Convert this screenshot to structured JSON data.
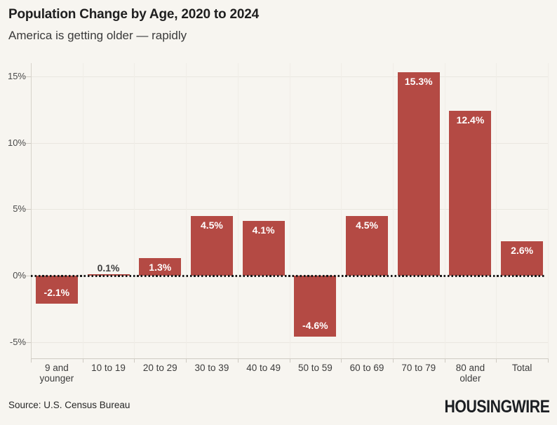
{
  "header": {
    "title": "Population Change by Age, 2020 to 2024",
    "subtitle": "America is getting older — rapidly"
  },
  "footer": {
    "source": "Source: U.S. Census Bureau",
    "brand": "HOUSINGWIRE"
  },
  "colors": {
    "background": "#F7F5F0",
    "bar": "#B44A44",
    "zero_line": "#1A1A1A",
    "grid": "#EAE7E0",
    "axis": "#D7D3CB",
    "bar_label": "#FFFFFF",
    "outside_label": "#3F3F3F"
  },
  "chart_data": {
    "type": "bar",
    "title": "Population Change by Age, 2020 to 2024",
    "subtitle": "America is getting older — rapidly",
    "categories": [
      "9 and younger",
      "10 to 19",
      "20 to 29",
      "30 to 39",
      "40 to 49",
      "50 to 59",
      "60 to 69",
      "70 to 79",
      "80 and older",
      "Total"
    ],
    "values": [
      -2.1,
      0.1,
      1.3,
      4.5,
      4.1,
      -4.6,
      4.5,
      15.3,
      12.4,
      2.6
    ],
    "labels": [
      "-2.1%",
      "0.1%",
      "1.3%",
      "4.5%",
      "4.1%",
      "-4.6%",
      "4.5%",
      "15.3%",
      "12.4%",
      "2.6%"
    ],
    "xlabel": "",
    "ylabel": "",
    "y_ticks": [
      15,
      10,
      5,
      0,
      -5
    ],
    "y_tick_labels": [
      "15%",
      "10%",
      "5%",
      "0%",
      "-5%"
    ],
    "ylim": [
      -6.2,
      16.0
    ],
    "grid": "horizontal-light",
    "zero_line": "dotted",
    "legend": "none",
    "bar_label_position": "inside-end, outside for near-zero values"
  }
}
